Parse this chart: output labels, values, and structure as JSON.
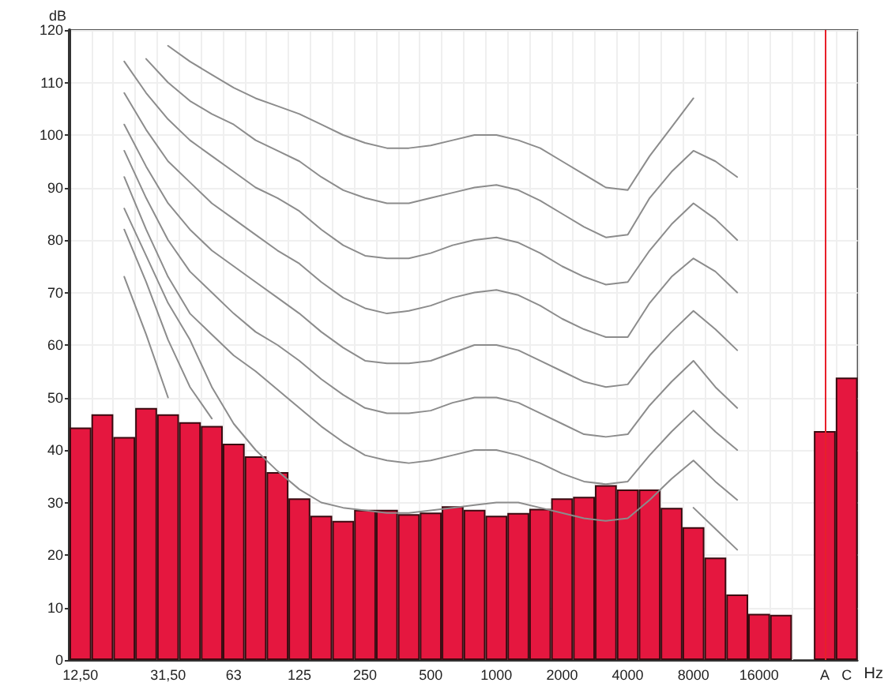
{
  "chart_data": {
    "type": "bar",
    "ylabel": "dB",
    "xlabel": "Hz",
    "categories": [
      "12,50",
      null,
      null,
      null,
      "31,50",
      null,
      null,
      "63",
      null,
      null,
      "125",
      null,
      null,
      "250",
      null,
      null,
      "500",
      null,
      null,
      "1000",
      null,
      null,
      "2000",
      null,
      null,
      "4000",
      null,
      null,
      "8000",
      null,
      null,
      "16000",
      null,
      null,
      "A",
      "C"
    ],
    "series": [
      {
        "color": "#e5173f",
        "values": [
          44.3,
          46.8,
          42.5,
          48,
          46.8,
          45.3,
          44.6,
          41.2,
          38.8,
          35.8,
          30.8,
          27.5,
          26.5,
          28.6,
          28.6,
          27.8,
          28.1,
          29.3,
          28.6,
          27.5,
          28,
          28.8,
          30.8,
          31.1,
          33.3,
          32.5,
          32.5,
          29,
          25.3,
          19.5,
          12.5,
          8.8,
          8.6,
          null,
          43.6,
          53.8
        ]
      },
      {
        "type": "line",
        "color": "#8c8c8c",
        "values": [
          null,
          null,
          null,
          null,
          117,
          114,
          111.5,
          109,
          107,
          105.5,
          104,
          102,
          100,
          98.5,
          97.5,
          97.5,
          98,
          99,
          100,
          100,
          99,
          97.5,
          95,
          92.5,
          90,
          89.5,
          96,
          101.5,
          107,
          null,
          null,
          null,
          null,
          null,
          null,
          null
        ]
      },
      {
        "type": "line",
        "color": "#8c8c8c",
        "values": [
          null,
          null,
          null,
          114.5,
          110,
          106.5,
          104,
          102,
          99,
          97,
          95,
          92,
          89.5,
          88,
          87,
          87,
          88,
          89,
          90,
          90.5,
          89.5,
          87.5,
          85,
          82.5,
          80.5,
          81,
          88,
          93,
          97,
          95,
          92,
          null,
          null,
          null,
          null,
          null
        ]
      },
      {
        "type": "line",
        "color": "#8c8c8c",
        "values": [
          null,
          null,
          114,
          108,
          103,
          99,
          96,
          93,
          90,
          88,
          85.5,
          82,
          79,
          77,
          76.5,
          76.5,
          77.5,
          79,
          80,
          80.5,
          79.5,
          77.5,
          75,
          73,
          71.5,
          72,
          78,
          83,
          87,
          84,
          80,
          null,
          null,
          null,
          null,
          null
        ]
      },
      {
        "type": "line",
        "color": "#8c8c8c",
        "values": [
          null,
          null,
          108,
          101,
          95,
          91,
          87,
          84,
          81,
          78,
          75.5,
          72,
          69,
          67,
          66,
          66.5,
          67.5,
          69,
          70,
          70.5,
          69.5,
          67.5,
          65,
          63,
          61.5,
          61.5,
          68,
          73,
          76.5,
          74,
          70,
          null,
          null,
          null,
          null,
          null
        ]
      },
      {
        "type": "line",
        "color": "#8c8c8c",
        "values": [
          null,
          null,
          102,
          94,
          87,
          82,
          78,
          75,
          72,
          69,
          66,
          62.5,
          59.5,
          57,
          56.5,
          56.5,
          57,
          58.5,
          60,
          60,
          59,
          57,
          55,
          53,
          52,
          52.5,
          58,
          62.5,
          66.5,
          63,
          59,
          null,
          null,
          null,
          null,
          null
        ]
      },
      {
        "type": "line",
        "color": "#8c8c8c",
        "values": [
          null,
          null,
          97,
          88,
          80,
          74,
          70,
          66,
          62.5,
          60,
          57,
          53.5,
          50.5,
          48,
          47,
          47,
          47.5,
          49,
          50,
          50,
          49,
          47,
          45,
          43,
          42.5,
          43,
          48.5,
          53,
          57,
          52,
          48,
          null,
          null,
          null,
          null,
          null
        ]
      },
      {
        "type": "line",
        "color": "#8c8c8c",
        "values": [
          null,
          null,
          92,
          82,
          73,
          66,
          62,
          58,
          55,
          51.5,
          48,
          44.5,
          41.5,
          39,
          38,
          37.5,
          38,
          39,
          40,
          40,
          39,
          37.5,
          35.5,
          34,
          33.5,
          34,
          39,
          43.5,
          47.5,
          43.5,
          40,
          null,
          null,
          null,
          null,
          null
        ]
      },
      {
        "type": "line",
        "color": "#8c8c8c",
        "values": [
          null,
          null,
          86,
          77,
          68,
          61,
          52,
          45,
          40,
          36,
          32.5,
          30,
          29,
          28.5,
          28,
          28,
          28.5,
          29,
          29.5,
          30,
          30,
          29,
          28,
          27,
          26.5,
          27,
          30.5,
          34.5,
          38,
          34,
          30.5,
          null,
          null,
          null,
          null,
          null
        ]
      },
      {
        "type": "line",
        "color": "#8c8c8c",
        "values": [
          null,
          null,
          82,
          72,
          61,
          52,
          46,
          null,
          null,
          null,
          null,
          null,
          null,
          null,
          null,
          null,
          null,
          null,
          null,
          null,
          null,
          null,
          null,
          null,
          null,
          null,
          null,
          null,
          29,
          25,
          21,
          null,
          null,
          null,
          null,
          null
        ]
      },
      {
        "type": "line",
        "color": "#8c8c8c",
        "values": [
          null,
          null,
          73,
          62,
          50,
          null,
          null,
          null,
          null,
          null,
          null,
          null,
          null,
          null,
          null,
          null,
          null,
          null,
          null,
          null,
          null,
          null,
          null,
          null,
          null,
          null,
          null,
          null,
          null,
          null,
          null,
          null,
          null,
          null,
          null,
          null
        ]
      }
    ],
    "ylim": [
      0,
      120
    ],
    "yticks": [
      0,
      10,
      20,
      30,
      40,
      50,
      60,
      70,
      80,
      90,
      100,
      110,
      120
    ],
    "grid": true,
    "marker": "none",
    "ref_lines": [
      {
        "axis": "x",
        "value": "A",
        "color": "#e8202a"
      }
    ]
  }
}
